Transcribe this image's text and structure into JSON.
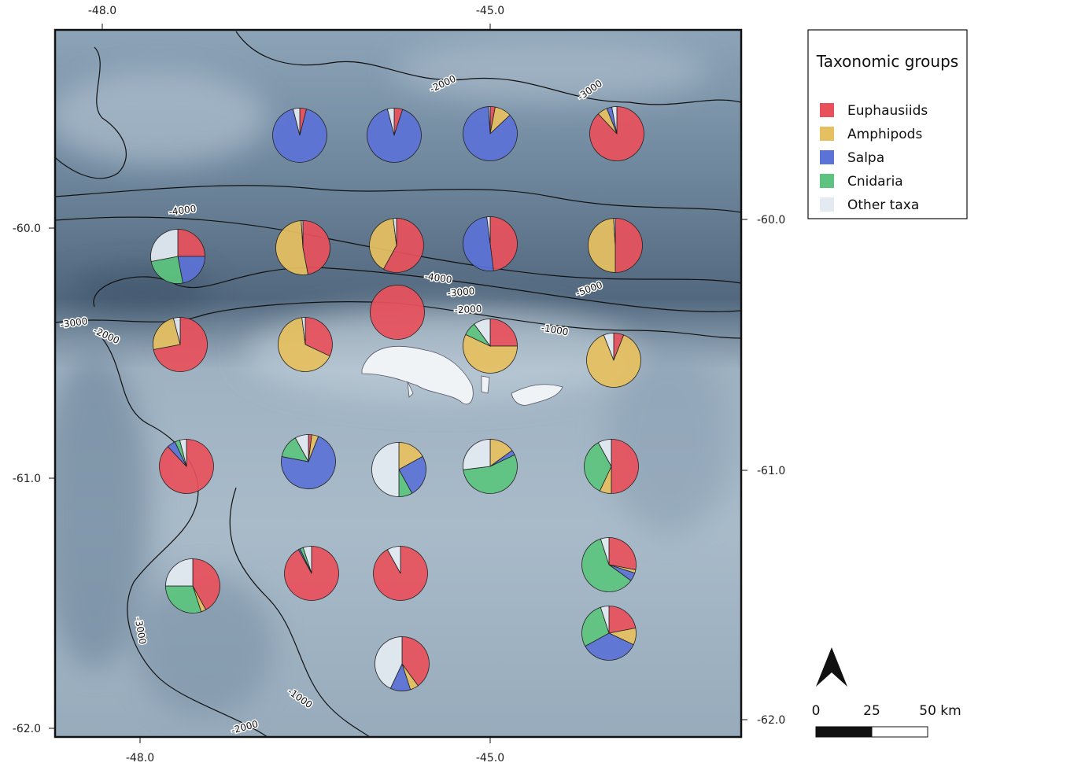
{
  "map": {
    "lon_labels_top": [
      "-48.0",
      "-45.0"
    ],
    "lon_labels_bottom": [
      "-48.0",
      "-45.0"
    ],
    "lat_labels_left": [
      "-60.0",
      "-61.0",
      "-62.0"
    ],
    "lat_labels_right": [
      "-60.0",
      "-61.0",
      "-62.0"
    ],
    "contour_labels": [
      "-2000",
      "-3000",
      "-4000",
      "-4000",
      "-3000",
      "-2000",
      "-5000",
      "-1000",
      "-3000",
      "-2000",
      "-3000",
      "-1000",
      "-2000"
    ],
    "legend": {
      "title": "Taxonomic groups",
      "groups": [
        {
          "name": "Euphausiids",
          "color": "#e8505b"
        },
        {
          "name": "Amphipods",
          "color": "#e6c060"
        },
        {
          "name": "Salpa",
          "color": "#5b72d6"
        },
        {
          "name": "Cnidaria",
          "color": "#5cc47e"
        },
        {
          "name": "Other taxa",
          "color": "#e4eaf2"
        }
      ]
    },
    "stations": [
      {
        "values": [
          4,
          0,
          92,
          0,
          4
        ]
      },
      {
        "values": [
          5,
          0,
          91,
          0,
          4
        ]
      },
      {
        "values": [
          3,
          10,
          86,
          0,
          1
        ]
      },
      {
        "values": [
          88,
          6,
          3,
          0,
          3
        ]
      },
      {
        "values": [
          25,
          0,
          22,
          25,
          28
        ]
      },
      {
        "values": [
          47,
          52,
          0,
          0,
          1
        ]
      },
      {
        "values": [
          58,
          40,
          0,
          0,
          2
        ]
      },
      {
        "values": [
          48,
          0,
          50,
          0,
          2
        ]
      },
      {
        "values": [
          50,
          49,
          0,
          0,
          1
        ]
      },
      {
        "values": [
          100,
          0,
          0,
          0,
          0
        ]
      },
      {
        "values": [
          72,
          24,
          0,
          0,
          4
        ]
      },
      {
        "values": [
          32,
          66,
          0,
          0,
          2
        ]
      },
      {
        "values": [
          25,
          57,
          0,
          8,
          10
        ]
      },
      {
        "values": [
          6,
          88,
          0,
          0,
          6
        ]
      },
      {
        "values": [
          88,
          0,
          5,
          3,
          4
        ]
      },
      {
        "values": [
          2,
          4,
          72,
          14,
          8
        ]
      },
      {
        "values": [
          0,
          17,
          25,
          8,
          50
        ]
      },
      {
        "values": [
          0,
          15,
          3,
          55,
          27
        ]
      },
      {
        "values": [
          50,
          7,
          0,
          35,
          8
        ]
      },
      {
        "values": [
          92,
          0,
          1,
          2,
          5
        ]
      },
      {
        "values": [
          92,
          0,
          0,
          0,
          8
        ]
      },
      {
        "values": [
          42,
          3,
          0,
          30,
          25
        ]
      },
      {
        "values": [
          28,
          2,
          5,
          60,
          5
        ]
      },
      {
        "values": [
          22,
          10,
          35,
          28,
          5
        ]
      },
      {
        "values": [
          40,
          5,
          12,
          0,
          43
        ]
      }
    ],
    "scale_bar": {
      "labels": [
        "0",
        "25",
        "50 km"
      ]
    }
  }
}
